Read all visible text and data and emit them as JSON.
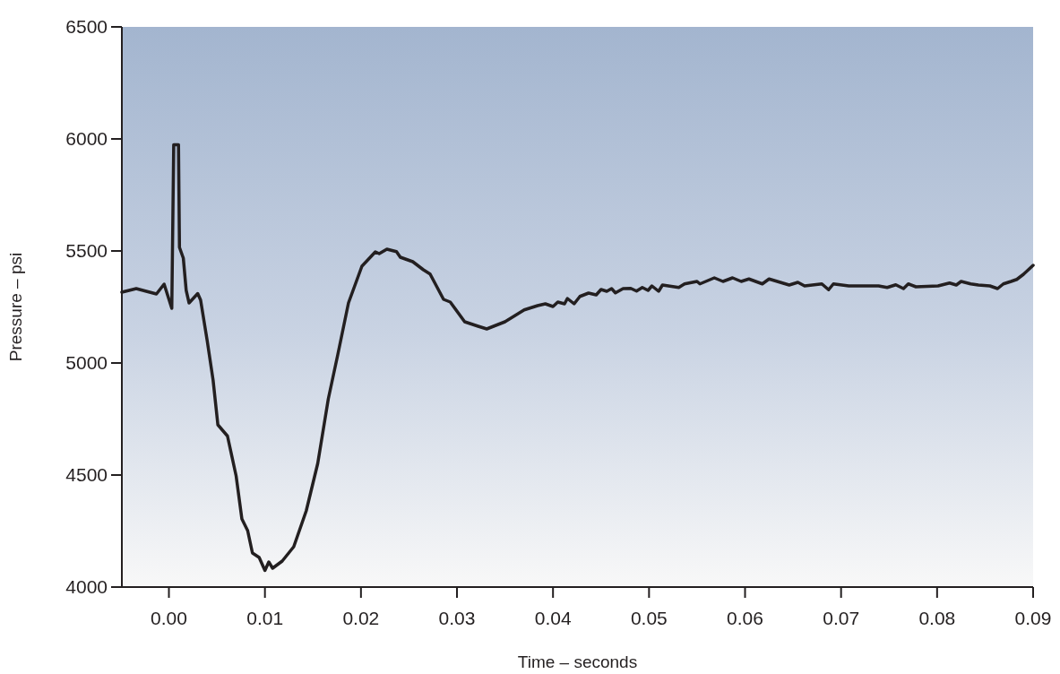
{
  "chart_data": {
    "type": "line",
    "xlabel": "Time – seconds",
    "ylabel": "Pressure – psi",
    "xlim": [
      -0.0049,
      0.09
    ],
    "ylim": [
      4000,
      6500
    ],
    "xticks": [
      {
        "value": 0,
        "label": "0.00"
      },
      {
        "value": 0.01,
        "label": "0.01"
      },
      {
        "value": 0.02,
        "label": "0.02"
      },
      {
        "value": 0.03,
        "label": "0.03"
      },
      {
        "value": 0.04,
        "label": "0.04"
      },
      {
        "value": 0.05,
        "label": "0.05"
      },
      {
        "value": 0.06,
        "label": "0.06"
      },
      {
        "value": 0.07,
        "label": "0.07"
      },
      {
        "value": 0.08,
        "label": "0.08"
      },
      {
        "value": 0.09,
        "label": "0.09"
      }
    ],
    "yticks": [
      4000,
      4500,
      5000,
      5500,
      6000,
      6500
    ],
    "grid": false,
    "marker": "none",
    "line_style": "solid",
    "series": [
      {
        "color": "#231f20",
        "x": [
          -0.0049,
          -0.0034,
          -0.0013,
          -0.0005,
          0.0003,
          0.0005,
          0.001,
          0.0011,
          0.0015,
          0.0018,
          0.0021,
          0.003,
          0.0033,
          0.004,
          0.0046,
          0.0051,
          0.0061,
          0.007,
          0.0076,
          0.0082,
          0.0087,
          0.0094,
          0.01,
          0.0104,
          0.0108,
          0.0118,
          0.013,
          0.0143,
          0.0155,
          0.0166,
          0.0176,
          0.0187,
          0.0201,
          0.0215,
          0.0219,
          0.0227,
          0.0237,
          0.0241,
          0.0254,
          0.0265,
          0.0272,
          0.0286,
          0.0293,
          0.0308,
          0.0322,
          0.0331,
          0.035,
          0.037,
          0.0384,
          0.0392,
          0.04,
          0.0405,
          0.0412,
          0.0415,
          0.0422,
          0.0428,
          0.0437,
          0.0445,
          0.045,
          0.0456,
          0.0461,
          0.0465,
          0.0473,
          0.0481,
          0.0487,
          0.0493,
          0.0499,
          0.0503,
          0.051,
          0.0514,
          0.0531,
          0.0537,
          0.055,
          0.0553,
          0.0568,
          0.0577,
          0.0587,
          0.0596,
          0.0604,
          0.0618,
          0.0625,
          0.0646,
          0.0655,
          0.0662,
          0.068,
          0.0687,
          0.0692,
          0.0708,
          0.0739,
          0.0748,
          0.0757,
          0.0765,
          0.077,
          0.0778,
          0.0801,
          0.0813,
          0.082,
          0.0825,
          0.0835,
          0.0843,
          0.0855,
          0.0863,
          0.0869,
          0.0877,
          0.0883,
          0.089,
          0.09
        ],
        "values": [
          5316,
          5332,
          5308,
          5352,
          5244,
          5974,
          5974,
          5516,
          5468,
          5324,
          5268,
          5310,
          5281,
          5096,
          4924,
          4724,
          4674,
          4496,
          4304,
          4252,
          4152,
          4132,
          4074,
          4112,
          4084,
          4116,
          4180,
          4340,
          4552,
          4840,
          5040,
          5268,
          5432,
          5496,
          5488,
          5508,
          5497,
          5472,
          5452,
          5416,
          5397,
          5284,
          5272,
          5184,
          5164,
          5152,
          5184,
          5237,
          5256,
          5264,
          5252,
          5272,
          5264,
          5288,
          5264,
          5297,
          5312,
          5304,
          5328,
          5320,
          5332,
          5313,
          5332,
          5333,
          5321,
          5337,
          5324,
          5344,
          5320,
          5348,
          5337,
          5353,
          5364,
          5353,
          5380,
          5364,
          5380,
          5364,
          5375,
          5353,
          5375,
          5348,
          5360,
          5344,
          5353,
          5327,
          5353,
          5344,
          5344,
          5337,
          5349,
          5332,
          5353,
          5340,
          5344,
          5357,
          5348,
          5364,
          5353,
          5348,
          5344,
          5332,
          5353,
          5364,
          5373,
          5396,
          5436
        ]
      }
    ]
  }
}
